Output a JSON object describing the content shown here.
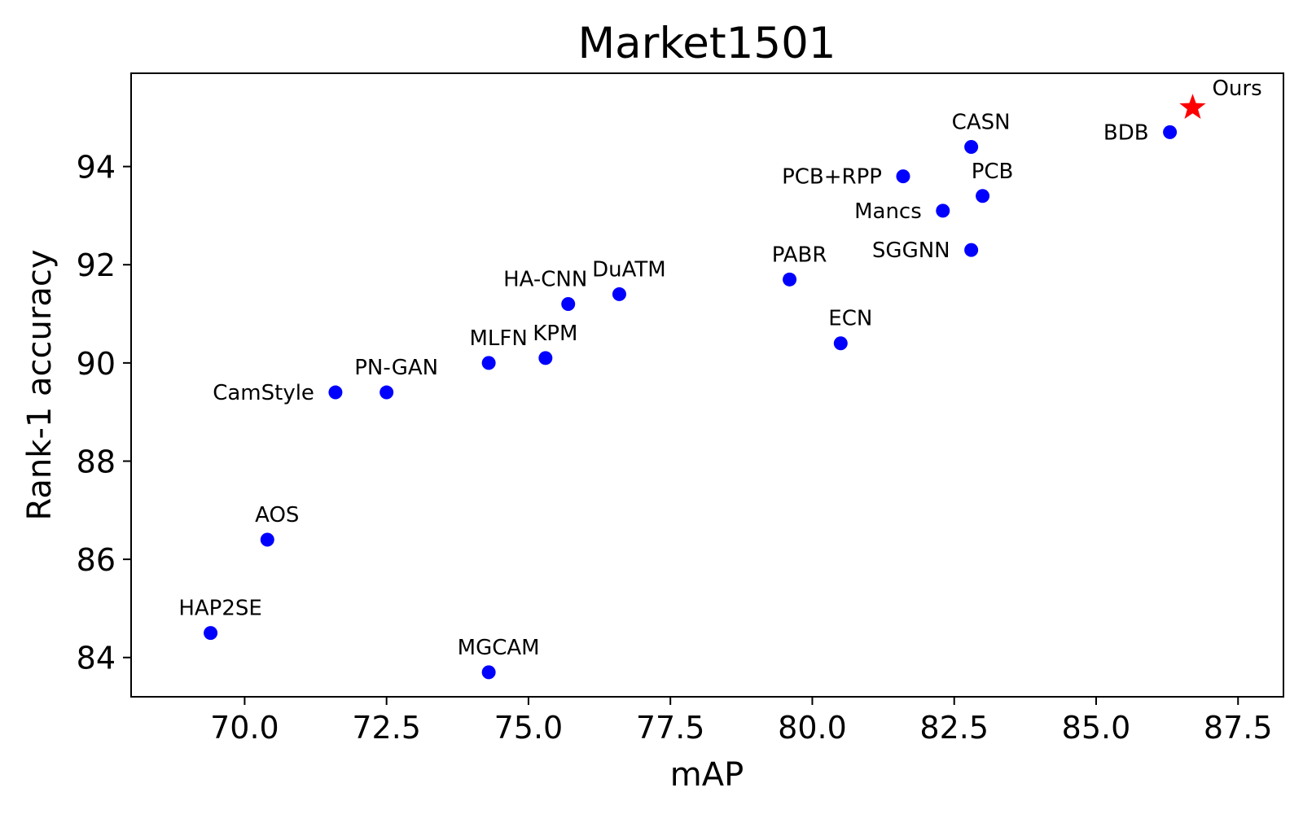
{
  "chart_data": {
    "type": "scatter",
    "title": "Market1501",
    "xlabel": "mAP",
    "ylabel": "Rank-1 accuracy",
    "xlim": [
      68.0,
      88.3
    ],
    "ylim": [
      83.2,
      95.9
    ],
    "xticks": [
      70.0,
      72.5,
      75.0,
      77.5,
      80.0,
      82.5,
      85.0,
      87.5
    ],
    "xtick_labels": [
      "70.0",
      "72.5",
      "75.0",
      "77.5",
      "80.0",
      "82.5",
      "85.0",
      "87.5"
    ],
    "yticks": [
      84,
      86,
      88,
      90,
      92,
      94
    ],
    "ytick_labels": [
      "84",
      "86",
      "88",
      "90",
      "92",
      "94"
    ],
    "grid": false,
    "colors": {
      "baseline": "#0000ff",
      "ours": "#ff0000"
    },
    "points": [
      {
        "label": "HAP2SE",
        "x": 69.4,
        "y": 84.5,
        "label_pos": "above"
      },
      {
        "label": "AOS",
        "x": 70.4,
        "y": 86.4,
        "label_pos": "above"
      },
      {
        "label": "CamStyle",
        "x": 71.6,
        "y": 89.4,
        "label_pos": "left"
      },
      {
        "label": "PN-GAN",
        "x": 72.5,
        "y": 89.4,
        "label_pos": "above"
      },
      {
        "label": "MLFN",
        "x": 74.3,
        "y": 90.0,
        "label_pos": "above"
      },
      {
        "label": "MGCAM",
        "x": 74.3,
        "y": 83.7,
        "label_pos": "above"
      },
      {
        "label": "KPM",
        "x": 75.3,
        "y": 90.1,
        "label_pos": "above"
      },
      {
        "label": "HA-CNN",
        "x": 75.7,
        "y": 91.2,
        "label_pos": "above-left"
      },
      {
        "label": "DuATM",
        "x": 76.6,
        "y": 91.4,
        "label_pos": "above"
      },
      {
        "label": "PABR",
        "x": 79.6,
        "y": 91.7,
        "label_pos": "above"
      },
      {
        "label": "ECN",
        "x": 80.5,
        "y": 90.4,
        "label_pos": "above"
      },
      {
        "label": "PCB+RPP",
        "x": 81.6,
        "y": 93.8,
        "label_pos": "left"
      },
      {
        "label": "Mancs",
        "x": 82.3,
        "y": 93.1,
        "label_pos": "left"
      },
      {
        "label": "SGGNN",
        "x": 82.8,
        "y": 92.3,
        "label_pos": "left"
      },
      {
        "label": "CASN",
        "x": 82.8,
        "y": 94.4,
        "label_pos": "above"
      },
      {
        "label": "PCB",
        "x": 83.0,
        "y": 93.4,
        "label_pos": "above"
      },
      {
        "label": "BDB",
        "x": 86.3,
        "y": 94.7,
        "label_pos": "left"
      },
      {
        "label": "Ours",
        "x": 86.7,
        "y": 95.2,
        "label_pos": "right",
        "marker": "star",
        "highlight": true
      }
    ]
  }
}
